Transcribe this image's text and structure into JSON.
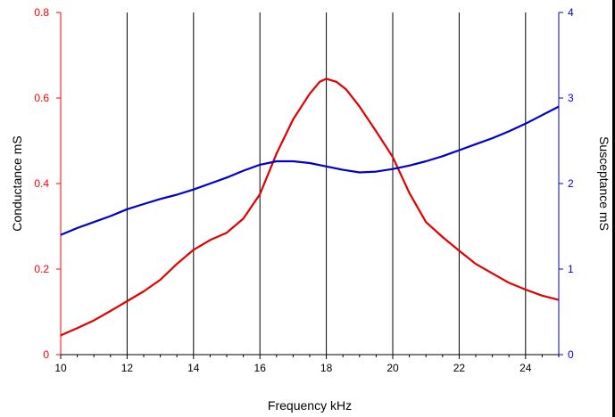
{
  "chart_data": {
    "type": "line",
    "title": "",
    "xlabel": "Frequency kHz",
    "ylabel_left": "Conductance mS",
    "ylabel_right": "Susceptance mS",
    "xlim": [
      10,
      25
    ],
    "ylim_left": [
      0,
      0.8
    ],
    "ylim_right": [
      0,
      4
    ],
    "x_ticks": [
      10,
      12,
      14,
      16,
      18,
      20,
      22,
      24
    ],
    "y_left_ticks": [
      0,
      0.2,
      0.4,
      0.6,
      0.8
    ],
    "y_right_ticks": [
      0,
      1,
      2,
      3,
      4
    ],
    "grid": "vertical",
    "colors": {
      "left_axis": "#ff0000",
      "right_axis": "#0000cc",
      "grid": "#000000"
    },
    "series": [
      {
        "axis": "left",
        "color": "#e00000",
        "x": [
          10,
          10.5,
          11,
          11.5,
          12,
          12.5,
          13,
          13.5,
          14,
          14.5,
          15,
          15.5,
          16,
          16.5,
          17,
          17.5,
          17.8,
          18,
          18.3,
          18.6,
          19,
          19.5,
          20,
          20.5,
          21,
          21.5,
          22,
          22.5,
          23,
          23.5,
          24,
          24.5,
          25
        ],
        "y": [
          0.045,
          0.062,
          0.08,
          0.102,
          0.125,
          0.148,
          0.175,
          0.212,
          0.245,
          0.268,
          0.285,
          0.318,
          0.375,
          0.47,
          0.55,
          0.61,
          0.638,
          0.645,
          0.638,
          0.62,
          0.58,
          0.522,
          0.462,
          0.378,
          0.31,
          0.275,
          0.243,
          0.212,
          0.19,
          0.168,
          0.152,
          0.138,
          0.128
        ]
      },
      {
        "axis": "right",
        "color": "#0000cc",
        "x": [
          10,
          10.5,
          11,
          11.5,
          12,
          12.5,
          13,
          13.5,
          14,
          14.5,
          15,
          15.5,
          16,
          16.5,
          17,
          17.5,
          18,
          18.5,
          19,
          19.5,
          20,
          20.5,
          21,
          21.5,
          22,
          22.5,
          23,
          23.5,
          24,
          24.5,
          25
        ],
        "y": [
          1.4,
          1.48,
          1.55,
          1.62,
          1.7,
          1.76,
          1.82,
          1.87,
          1.93,
          2.0,
          2.07,
          2.15,
          2.22,
          2.26,
          2.26,
          2.24,
          2.2,
          2.16,
          2.13,
          2.14,
          2.17,
          2.21,
          2.26,
          2.32,
          2.39,
          2.46,
          2.53,
          2.61,
          2.7,
          2.8,
          2.9
        ]
      }
    ]
  }
}
